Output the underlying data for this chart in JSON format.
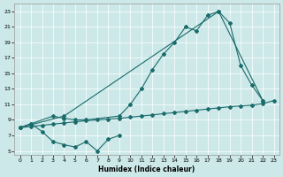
{
  "xlabel": "Humidex (Indice chaleur)",
  "xlim": [
    -0.5,
    23.5
  ],
  "ylim": [
    4.5,
    24.0
  ],
  "xticks": [
    0,
    1,
    2,
    3,
    4,
    5,
    6,
    7,
    8,
    9,
    10,
    11,
    12,
    13,
    14,
    15,
    16,
    17,
    18,
    19,
    20,
    21,
    22,
    23
  ],
  "yticks": [
    5,
    7,
    9,
    11,
    13,
    15,
    17,
    19,
    21,
    23
  ],
  "bg_color": "#cce8e8",
  "line_color": "#1a6b6b",
  "grid_color": "#ffffff",
  "line1_x": [
    0,
    1,
    2,
    3,
    4,
    5,
    6,
    7,
    8,
    9
  ],
  "line1_y": [
    8.0,
    8.5,
    7.5,
    6.2,
    5.8,
    5.5,
    6.2,
    5.0,
    6.5,
    7.0
  ],
  "line2_x": [
    0,
    1,
    3,
    4,
    5,
    6,
    9,
    10,
    11,
    12,
    13,
    14,
    15,
    16,
    17,
    18,
    19,
    20,
    21,
    22
  ],
  "line2_y": [
    8.0,
    8.5,
    9.5,
    9.2,
    9.0,
    9.0,
    9.5,
    11.0,
    13.0,
    15.5,
    17.5,
    19.0,
    21.0,
    20.5,
    22.5,
    23.0,
    21.5,
    16.0,
    13.5,
    11.5
  ],
  "line3_x": [
    0,
    4,
    18,
    22
  ],
  "line3_y": [
    8.0,
    9.5,
    23.0,
    11.5
  ],
  "line4_x": [
    0,
    1,
    2,
    3,
    4,
    5,
    6,
    7,
    8,
    9,
    10,
    11,
    12,
    13,
    14,
    15,
    16,
    17,
    18,
    19,
    20,
    21,
    22,
    23
  ],
  "line4_y": [
    8.0,
    8.15,
    8.3,
    8.45,
    8.6,
    8.75,
    8.9,
    9.0,
    9.1,
    9.2,
    9.35,
    9.5,
    9.65,
    9.8,
    9.95,
    10.1,
    10.25,
    10.4,
    10.55,
    10.7,
    10.8,
    10.9,
    11.1,
    11.5
  ]
}
